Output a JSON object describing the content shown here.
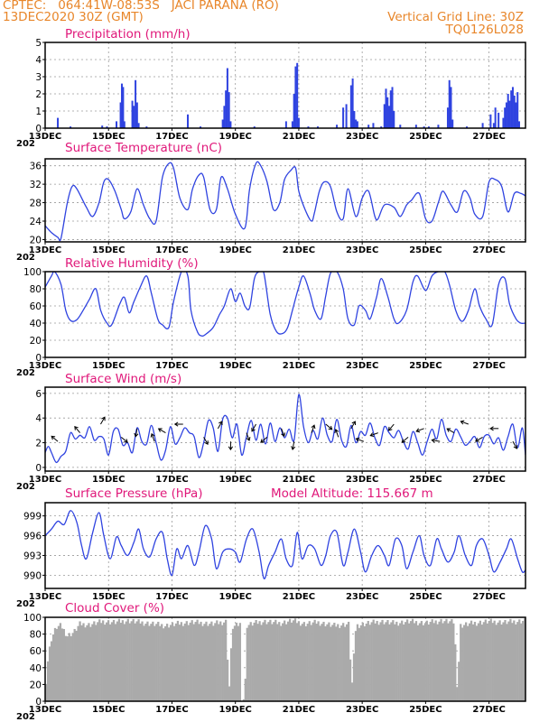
{
  "header": {
    "line1": "CPTEC:   064:41W-08:53S   JACI PARANA (RO)",
    "line2": "13DEC2020 30Z (GMT)",
    "grid_note": "Vertical Grid Line: 30Z",
    "code": "TQ0126L028"
  },
  "colors": {
    "line": "#2f43e0",
    "bar": "#2f43e0",
    "cloud": "#aaaaaa",
    "title": "#e0187a",
    "header": "#e8862a"
  },
  "x_axis": {
    "labels": [
      "13DEC",
      "15DEC",
      "17DEC",
      "19DEC",
      "21DEC",
      "23DEC",
      "25DEC",
      "27DEC"
    ],
    "label_days": [
      0,
      2,
      4,
      6,
      8,
      10,
      12,
      14
    ],
    "partial_year": "202",
    "range_days": [
      0,
      15.15
    ]
  },
  "chart_data": [
    {
      "type": "bar",
      "title": "Precipitation (mm/h)",
      "ylim": [
        0,
        5
      ],
      "yticks": [
        0,
        1,
        2,
        3,
        4,
        5
      ],
      "events": [
        [
          0.4,
          0.6
        ],
        [
          0.8,
          0.1
        ],
        [
          1.8,
          0.15
        ],
        [
          1.95,
          0.1
        ],
        [
          2.45,
          0.2
        ],
        [
          2.25,
          0.4
        ],
        [
          2.38,
          1.5
        ],
        [
          2.42,
          2.6
        ],
        [
          2.46,
          2.4
        ],
        [
          2.5,
          0.4
        ],
        [
          2.75,
          1.6
        ],
        [
          2.8,
          1.3
        ],
        [
          2.85,
          2.8
        ],
        [
          2.9,
          1.5
        ],
        [
          2.95,
          0.3
        ],
        [
          3.2,
          0.1
        ],
        [
          4.5,
          0.8
        ],
        [
          4.9,
          0.1
        ],
        [
          5.6,
          0.5
        ],
        [
          5.65,
          1.3
        ],
        [
          5.7,
          2.2
        ],
        [
          5.75,
          3.5
        ],
        [
          5.8,
          2.1
        ],
        [
          5.85,
          0.4
        ],
        [
          6.6,
          0.1
        ],
        [
          7.6,
          0.4
        ],
        [
          7.8,
          0.4
        ],
        [
          7.85,
          2.0
        ],
        [
          7.9,
          3.6
        ],
        [
          7.95,
          3.8
        ],
        [
          8.0,
          0.6
        ],
        [
          8.3,
          0.1
        ],
        [
          8.6,
          0.1
        ],
        [
          9.2,
          0.2
        ],
        [
          9.5,
          0.1
        ],
        [
          9.4,
          1.2
        ],
        [
          9.5,
          1.4
        ],
        [
          9.65,
          2.5
        ],
        [
          9.7,
          2.9
        ],
        [
          9.75,
          1.0
        ],
        [
          9.8,
          0.5
        ],
        [
          9.85,
          0.4
        ],
        [
          10.2,
          0.2
        ],
        [
          10.35,
          0.3
        ],
        [
          10.6,
          0.1
        ],
        [
          10.7,
          1.4
        ],
        [
          10.75,
          2.3
        ],
        [
          10.8,
          1.8
        ],
        [
          10.85,
          1.3
        ],
        [
          10.9,
          2.2
        ],
        [
          10.95,
          2.4
        ],
        [
          11.0,
          1.0
        ],
        [
          11.2,
          0.2
        ],
        [
          11.7,
          0.2
        ],
        [
          11.95,
          0.1
        ],
        [
          12.1,
          0.1
        ],
        [
          12.4,
          0.2
        ],
        [
          12.7,
          1.2
        ],
        [
          12.75,
          2.8
        ],
        [
          12.8,
          2.4
        ],
        [
          12.85,
          0.5
        ],
        [
          13.3,
          0.1
        ],
        [
          13.8,
          0.3
        ],
        [
          14.05,
          0.8
        ],
        [
          14.15,
          0.3
        ],
        [
          14.2,
          1.2
        ],
        [
          14.3,
          0.9
        ],
        [
          14.45,
          0.6
        ],
        [
          14.5,
          1.2
        ],
        [
          14.55,
          1.5
        ],
        [
          14.6,
          2.0
        ],
        [
          14.65,
          1.6
        ],
        [
          14.7,
          2.2
        ],
        [
          14.75,
          2.4
        ],
        [
          14.8,
          1.9
        ],
        [
          14.85,
          1.5
        ],
        [
          14.9,
          2.1
        ],
        [
          14.95,
          0.4
        ]
      ]
    },
    {
      "type": "line",
      "title": "Surface Temperature (nC)",
      "ylim": [
        19.5,
        37.5
      ],
      "yticks": [
        20,
        24,
        28,
        32,
        36
      ],
      "x": [
        0,
        0.2,
        0.4,
        0.5,
        0.7,
        0.85,
        1.0,
        1.3,
        1.5,
        1.7,
        1.85,
        2.0,
        2.2,
        2.4,
        2.5,
        2.7,
        2.9,
        3.1,
        3.3,
        3.5,
        3.7,
        3.9,
        4.05,
        4.25,
        4.5,
        4.65,
        4.85,
        5.0,
        5.2,
        5.4,
        5.55,
        5.75,
        6.0,
        6.3,
        6.45,
        6.65,
        6.8,
        7.0,
        7.2,
        7.4,
        7.55,
        7.75,
        7.9,
        8.0,
        8.2,
        8.4,
        8.5,
        8.65,
        8.8,
        9.0,
        9.2,
        9.4,
        9.55,
        9.8,
        10.0,
        10.2,
        10.4,
        10.5,
        10.7,
        11.0,
        11.2,
        11.4,
        11.55,
        11.8,
        12.0,
        12.2,
        12.4,
        12.55,
        12.8,
        13.0,
        13.2,
        13.4,
        13.55,
        13.8,
        14.0,
        14.2,
        14.4,
        14.6,
        14.8,
        15.0,
        15.15
      ],
      "y": [
        23.0,
        21.5,
        20.5,
        20.3,
        28.0,
        31.5,
        31.0,
        27.0,
        25.0,
        28.0,
        32.5,
        33.0,
        30.5,
        26.5,
        24.5,
        26.0,
        31.0,
        27.5,
        24.5,
        24.0,
        33.5,
        36.5,
        35.5,
        29.0,
        26.5,
        31.0,
        34.0,
        33.5,
        26.5,
        26.5,
        33.5,
        31.0,
        25.5,
        22.5,
        31.0,
        36.5,
        36.0,
        32.5,
        26.5,
        28.0,
        33.0,
        35.0,
        35.5,
        30.5,
        26.5,
        24.0,
        26.0,
        30.5,
        32.5,
        31.5,
        26.0,
        24.5,
        31.0,
        25.0,
        29.0,
        30.5,
        25.0,
        24.5,
        27.5,
        27.0,
        25.0,
        27.5,
        28.5,
        30.0,
        24.5,
        24.0,
        28.0,
        30.5,
        27.5,
        26.0,
        30.5,
        29.0,
        25.5,
        25.0,
        32.5,
        33.0,
        31.5,
        26.0,
        30.0,
        30.0,
        29.5
      ]
    },
    {
      "type": "line",
      "title": "Relative Humidity (%)",
      "ylim": [
        0,
        100
      ],
      "yticks": [
        0,
        20,
        40,
        60,
        80,
        100
      ],
      "x": [
        0,
        0.2,
        0.3,
        0.5,
        0.65,
        0.8,
        1.0,
        1.2,
        1.4,
        1.6,
        1.75,
        1.95,
        2.1,
        2.35,
        2.5,
        2.65,
        2.8,
        3.0,
        3.2,
        3.35,
        3.55,
        3.7,
        3.9,
        4.05,
        4.3,
        4.5,
        4.6,
        4.8,
        4.95,
        5.1,
        5.3,
        5.5,
        5.65,
        5.85,
        6.0,
        6.15,
        6.3,
        6.45,
        6.6,
        6.75,
        6.9,
        7.1,
        7.3,
        7.5,
        7.65,
        7.8,
        8.0,
        8.15,
        8.35,
        8.5,
        8.7,
        8.85,
        9.0,
        9.2,
        9.4,
        9.55,
        9.75,
        9.9,
        10.1,
        10.25,
        10.45,
        10.6,
        10.8,
        11.0,
        11.15,
        11.4,
        11.6,
        11.75,
        12.0,
        12.2,
        12.4,
        12.6,
        12.75,
        12.95,
        13.15,
        13.35,
        13.55,
        13.7,
        13.9,
        14.1,
        14.3,
        14.5,
        14.65,
        14.85,
        15.0,
        15.15
      ],
      "y": [
        82,
        95,
        100,
        85,
        55,
        43,
        44,
        55,
        68,
        80,
        55,
        40,
        38,
        62,
        70,
        52,
        65,
        82,
        95,
        75,
        45,
        38,
        35,
        65,
        100,
        95,
        55,
        30,
        25,
        28,
        35,
        50,
        60,
        80,
        65,
        75,
        60,
        58,
        92,
        100,
        98,
        50,
        30,
        28,
        35,
        55,
        82,
        95,
        75,
        55,
        45,
        72,
        98,
        100,
        80,
        45,
        38,
        60,
        55,
        45,
        70,
        92,
        72,
        45,
        40,
        55,
        88,
        95,
        78,
        95,
        100,
        100,
        85,
        55,
        42,
        55,
        80,
        60,
        45,
        38,
        85,
        92,
        62,
        45,
        40,
        40
      ]
    },
    {
      "type": "line",
      "title": "Surface Wind (m/s)",
      "ylim": [
        -0.3,
        6.5
      ],
      "yticks": [
        0,
        2,
        4,
        6
      ],
      "x": [
        0,
        0.1,
        0.2,
        0.35,
        0.5,
        0.65,
        0.8,
        0.95,
        1.1,
        1.25,
        1.4,
        1.55,
        1.7,
        1.85,
        2.0,
        2.15,
        2.3,
        2.45,
        2.6,
        2.75,
        2.9,
        3.05,
        3.2,
        3.35,
        3.5,
        3.65,
        3.8,
        3.95,
        4.1,
        4.25,
        4.4,
        4.55,
        4.7,
        4.85,
        5.0,
        5.15,
        5.3,
        5.45,
        5.6,
        5.75,
        5.9,
        6.05,
        6.2,
        6.35,
        6.5,
        6.65,
        6.8,
        6.95,
        7.1,
        7.25,
        7.4,
        7.55,
        7.7,
        7.85,
        8.0,
        8.15,
        8.3,
        8.45,
        8.6,
        8.75,
        8.9,
        9.05,
        9.2,
        9.35,
        9.5,
        9.65,
        9.8,
        9.95,
        10.1,
        10.25,
        10.4,
        10.55,
        10.7,
        10.85,
        11.0,
        11.15,
        11.3,
        11.45,
        11.6,
        11.75,
        11.9,
        12.05,
        12.2,
        12.35,
        12.5,
        12.65,
        12.8,
        12.95,
        13.1,
        13.25,
        13.4,
        13.55,
        13.7,
        13.85,
        14.0,
        14.15,
        14.3,
        14.45,
        14.6,
        14.75,
        14.9,
        15.05,
        15.15
      ],
      "y": [
        1.2,
        1.7,
        1.2,
        0.4,
        0.9,
        1.3,
        2.8,
        2.3,
        2.6,
        2.4,
        3.3,
        2.2,
        2.5,
        2.3,
        1.0,
        2.9,
        3.1,
        1.8,
        2.0,
        1.2,
        3.2,
        2.1,
        1.9,
        3.4,
        2.0,
        0.6,
        1.4,
        3.3,
        1.9,
        2.4,
        3.2,
        2.8,
        2.5,
        0.8,
        2.0,
        3.8,
        3.2,
        1.3,
        3.9,
        4.0,
        2.4,
        3.5,
        1.0,
        2.5,
        3.8,
        2.2,
        3.5,
        1.9,
        3.6,
        2.1,
        3.2,
        2.4,
        3.1,
        2.2,
        5.9,
        3.3,
        2.0,
        3.0,
        2.3,
        4.0,
        2.6,
        2.1,
        3.9,
        2.2,
        1.7,
        3.4,
        2.0,
        2.9,
        2.6,
        3.6,
        2.4,
        1.8,
        3.3,
        2.8,
        2.4,
        3.0,
        2.1,
        1.5,
        2.9,
        2.0,
        1.0,
        2.1,
        3.1,
        2.3,
        3.9,
        2.6,
        2.1,
        3.1,
        2.5,
        1.8,
        2.1,
        2.5,
        1.6,
        2.5,
        2.6,
        1.9,
        2.4,
        1.4,
        2.5,
        3.5,
        1.6,
        3.2,
        1.0
      ]
    },
    {
      "type": "line",
      "title": "Surface Pressure (hPa)",
      "annotation": "Model Altitude: 115.667 m",
      "ylim": [
        988.0,
        1001.0
      ],
      "yticks": [
        990,
        993,
        996,
        999
      ],
      "x": [
        0,
        0.2,
        0.4,
        0.6,
        0.8,
        1.0,
        1.15,
        1.3,
        1.5,
        1.7,
        1.85,
        2.05,
        2.25,
        2.4,
        2.6,
        2.8,
        2.95,
        3.1,
        3.3,
        3.5,
        3.7,
        3.85,
        4.0,
        4.15,
        4.3,
        4.5,
        4.7,
        4.85,
        5.05,
        5.25,
        5.4,
        5.6,
        5.8,
        6.0,
        6.15,
        6.35,
        6.55,
        6.75,
        6.9,
        7.05,
        7.25,
        7.45,
        7.6,
        7.8,
        7.95,
        8.1,
        8.3,
        8.5,
        8.7,
        8.85,
        9.0,
        9.2,
        9.4,
        9.55,
        9.75,
        9.95,
        10.1,
        10.3,
        10.5,
        10.7,
        10.85,
        11.05,
        11.25,
        11.4,
        11.6,
        11.8,
        11.95,
        12.15,
        12.35,
        12.5,
        12.7,
        12.9,
        13.05,
        13.25,
        13.45,
        13.6,
        13.8,
        14.0,
        14.15,
        14.35,
        14.55,
        14.7,
        14.9,
        15.05,
        15.15
      ],
      "y": [
        996.0,
        997.0,
        998.2,
        997.7,
        999.8,
        998.0,
        994.5,
        992.5,
        996.5,
        999.5,
        996.0,
        992.5,
        995.8,
        994.5,
        993.0,
        995.0,
        997.0,
        994.0,
        992.8,
        995.5,
        996.5,
        992.5,
        990.0,
        994.0,
        992.5,
        994.5,
        991.5,
        993.5,
        997.5,
        995.5,
        991.0,
        993.5,
        994.0,
        993.5,
        992.0,
        995.5,
        997.0,
        993.5,
        989.5,
        991.5,
        993.5,
        995.5,
        992.5,
        991.5,
        996.5,
        992.5,
        994.5,
        994.0,
        991.5,
        993.0,
        996.0,
        996.5,
        991.5,
        993.5,
        997.0,
        993.5,
        990.5,
        993.0,
        994.5,
        993.0,
        991.5,
        995.5,
        994.5,
        991.0,
        993.5,
        996.0,
        993.0,
        991.5,
        995.5,
        994.0,
        992.0,
        993.5,
        996.0,
        993.0,
        991.5,
        994.5,
        995.5,
        993.0,
        990.5,
        992.0,
        994.0,
        995.5,
        992.5,
        990.5,
        990.8
      ]
    },
    {
      "type": "bar",
      "title": "Cloud Cover (%)",
      "ylim": [
        0,
        100
      ],
      "yticks": [
        0,
        20,
        40,
        60,
        80,
        100
      ],
      "keyframes": [
        [
          0,
          12
        ],
        [
          0.1,
          55
        ],
        [
          0.2,
          75
        ],
        [
          0.35,
          88
        ],
        [
          0.5,
          90
        ],
        [
          0.7,
          78
        ],
        [
          0.9,
          82
        ],
        [
          1.1,
          92
        ],
        [
          1.4,
          91
        ],
        [
          1.8,
          95
        ],
        [
          2.2,
          94
        ],
        [
          2.6,
          96
        ],
        [
          3.0,
          94
        ],
        [
          3.4,
          92
        ],
        [
          3.8,
          90
        ],
        [
          4.3,
          93
        ],
        [
          4.7,
          94
        ],
        [
          5.3,
          92
        ],
        [
          5.7,
          95
        ],
        [
          5.8,
          12
        ],
        [
          5.9,
          88
        ],
        [
          6.15,
          92
        ],
        [
          6.18,
          3
        ],
        [
          6.3,
          3
        ],
        [
          6.35,
          90
        ],
        [
          6.6,
          93
        ],
        [
          6.9,
          95
        ],
        [
          7.4,
          93
        ],
        [
          7.8,
          96
        ],
        [
          8.2,
          92
        ],
        [
          8.6,
          94
        ],
        [
          9.1,
          90
        ],
        [
          9.6,
          92
        ],
        [
          9.65,
          5
        ],
        [
          9.8,
          90
        ],
        [
          10.2,
          93
        ],
        [
          10.6,
          95
        ],
        [
          11.0,
          93
        ],
        [
          11.5,
          95
        ],
        [
          12.0,
          93
        ],
        [
          12.5,
          96
        ],
        [
          12.9,
          94
        ],
        [
          13.0,
          12
        ],
        [
          13.1,
          90
        ],
        [
          13.5,
          93
        ],
        [
          14.0,
          95
        ],
        [
          14.5,
          94
        ],
        [
          15.15,
          96
        ]
      ]
    }
  ]
}
